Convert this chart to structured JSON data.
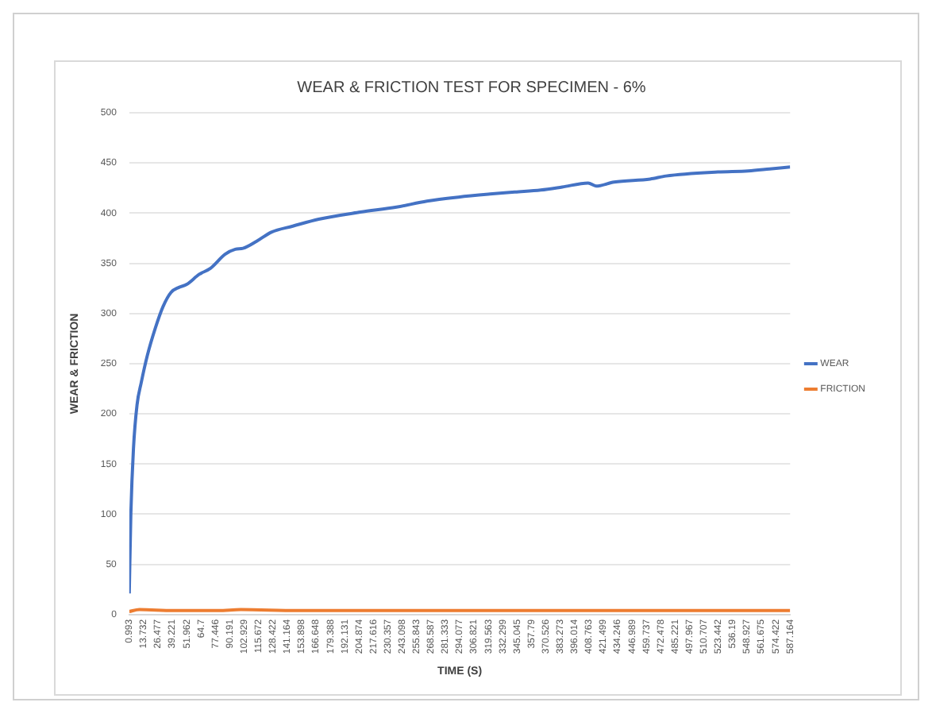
{
  "chart_data": {
    "type": "line",
    "title": "WEAR & FRICTION TEST FOR SPECIMEN - 6%",
    "xlabel": "TIME (S)",
    "ylabel": "WEAR & FRICTION",
    "xlim": [
      0.993,
      587.164
    ],
    "xticks": [
      0.993,
      13.732,
      26.477,
      39.221,
      51.962,
      64.7,
      77.446,
      90.191,
      102.929,
      115.672,
      128.422,
      141.164,
      153.898,
      166.648,
      179.388,
      192.131,
      204.874,
      217.616,
      230.357,
      243.098,
      255.843,
      268.587,
      281.333,
      294.077,
      306.821,
      319.563,
      332.299,
      345.045,
      357.79,
      370.526,
      383.273,
      396.014,
      408.763,
      421.499,
      434.246,
      446.989,
      459.737,
      472.478,
      485.221,
      497.967,
      510.707,
      523.442,
      536.19,
      548.927,
      561.675,
      574.422,
      587.164
    ],
    "ylim": [
      0,
      500
    ],
    "yticks": [
      0,
      50,
      100,
      150,
      200,
      250,
      300,
      350,
      400,
      450,
      500
    ],
    "grid": "y",
    "legend": "right",
    "marker": "none",
    "line_style": "solid",
    "series": [
      {
        "name": "WEAR",
        "color": "#4472c4",
        "x": [
          0.993,
          2.4,
          4.7,
          7.9,
          11.6,
          17,
          24,
          31,
          38,
          45,
          52,
          63,
          73,
          86,
          95,
          102,
          114,
          127,
          146,
          169,
          206,
          238,
          265,
          293,
          321,
          343,
          366,
          385,
          408,
          415,
          431,
          463,
          477,
          523,
          550,
          569,
          587.164
        ],
        "values": [
          21,
          100,
          165,
          209,
          231,
          258,
          285,
          307,
          321,
          326,
          329,
          339,
          345,
          359,
          364,
          365,
          372,
          381,
          387,
          394,
          401,
          406,
          412,
          416,
          419,
          421,
          423,
          426,
          430,
          427,
          431,
          434,
          437,
          441,
          442,
          444,
          446
        ]
      },
      {
        "name": "FRICTION",
        "color": "#ed7d31",
        "x": [
          0.993,
          10,
          40,
          80,
          100,
          150,
          200,
          300,
          400,
          500,
          587.164
        ],
        "values": [
          3,
          5,
          4,
          4,
          5,
          4,
          4,
          4,
          4,
          4,
          4
        ]
      }
    ]
  }
}
